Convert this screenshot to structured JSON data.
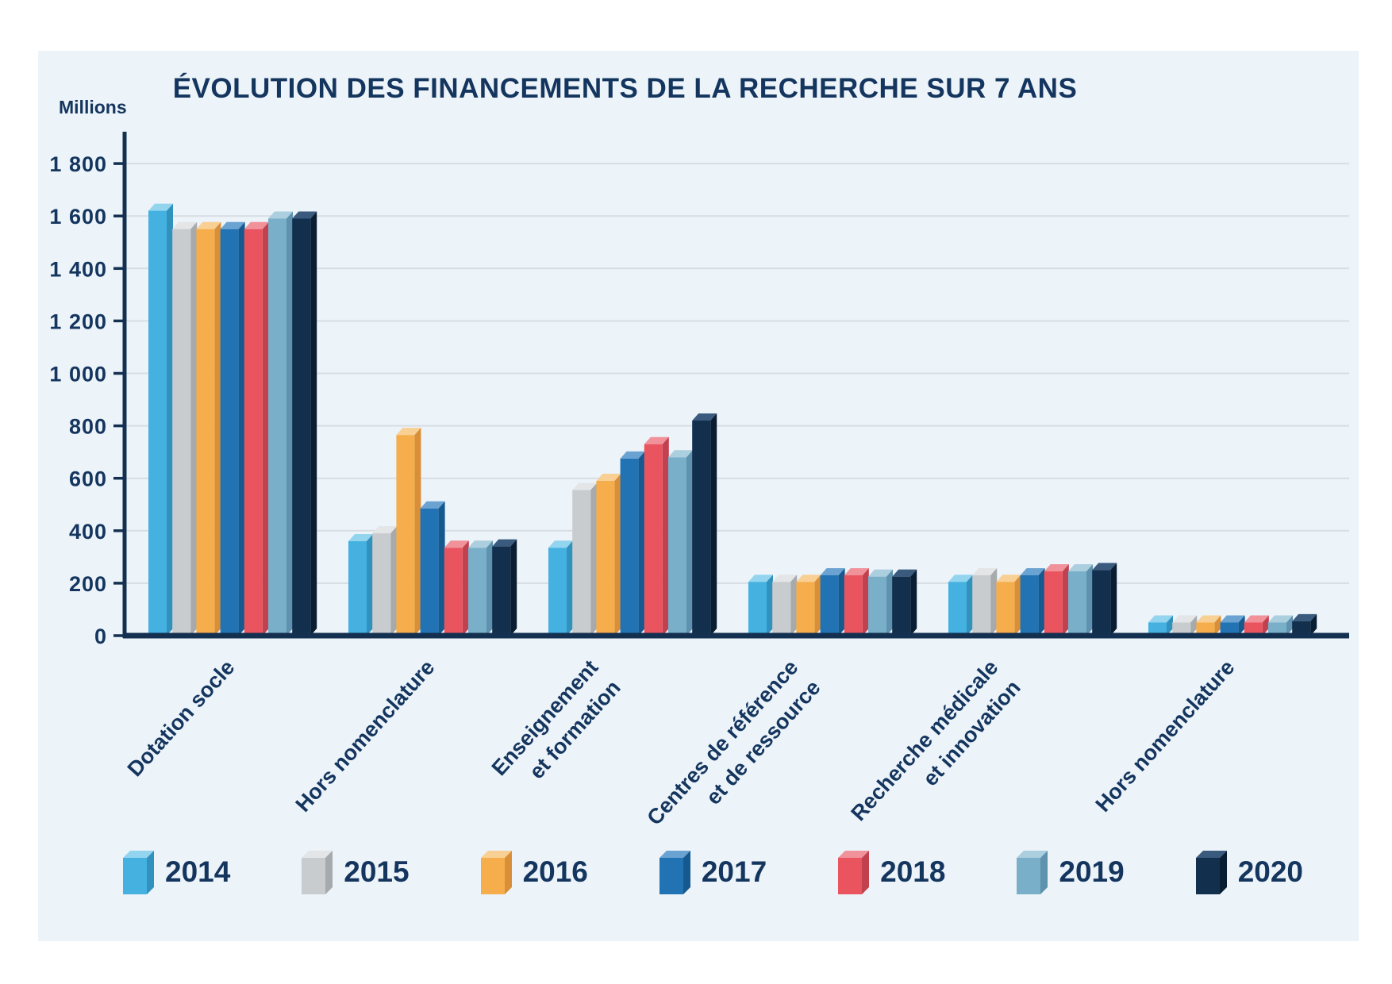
{
  "page": {
    "title": "ÉVOLUTION DES FINANCEMENTS DE LA RECHERCHE SUR 7 ANS",
    "y_axis_unit": "Millions"
  },
  "chart_data": {
    "type": "bar",
    "style": "3d-grouped-columns",
    "title": "ÉVOLUTION DES FINANCEMENTS DE LA RECHERCHE SUR 7 ANS",
    "xlabel": "",
    "ylabel": "Millions",
    "ylim": [
      0,
      1800
    ],
    "ytick_step": 200,
    "ytick_values": [
      1800,
      1600,
      1400,
      1200,
      1000,
      800,
      600,
      400,
      200,
      0
    ],
    "ytick_labels": [
      "1 800",
      "1 600",
      "1 400",
      "1 200",
      "1 000",
      "800",
      "600",
      "400",
      "200",
      "0"
    ],
    "grid": true,
    "legend_position": "bottom",
    "categories": [
      [
        "Dotation socle"
      ],
      [
        "Hors nomenclature"
      ],
      [
        "Enseignement",
        "et formation"
      ],
      [
        "Centres de référence",
        "et de ressource"
      ],
      [
        "Recherche médicale",
        "et innovation"
      ],
      [
        "Hors nomenclature"
      ]
    ],
    "series": [
      {
        "name": "2014",
        "color": "#44b1e1",
        "top_color": "#93d5ef",
        "side_color": "#3092bd",
        "values": [
          1620,
          360,
          335,
          205,
          205,
          50
        ]
      },
      {
        "name": "2015",
        "color": "#c9cccf",
        "top_color": "#e3e5e7",
        "side_color": "#a7aaad",
        "values": [
          1550,
          390,
          555,
          205,
          230,
          50
        ]
      },
      {
        "name": "2016",
        "color": "#f6ae4c",
        "top_color": "#f9d093",
        "side_color": "#d98f38",
        "values": [
          1550,
          765,
          590,
          205,
          205,
          50
        ]
      },
      {
        "name": "2017",
        "color": "#2273b4",
        "top_color": "#6aa3d2",
        "side_color": "#16598f",
        "values": [
          1550,
          485,
          675,
          230,
          230,
          50
        ]
      },
      {
        "name": "2018",
        "color": "#e9545f",
        "top_color": "#f1929a",
        "side_color": "#c2414f",
        "values": [
          1550,
          335,
          730,
          230,
          245,
          50
        ]
      },
      {
        "name": "2019",
        "color": "#7aafc9",
        "top_color": "#accfdf",
        "side_color": "#5e92ae",
        "values": [
          1590,
          335,
          680,
          225,
          245,
          50
        ]
      },
      {
        "name": "2020",
        "color": "#132f4e",
        "top_color": "#3a5b7e",
        "side_color": "#091d33",
        "values": [
          1590,
          340,
          820,
          225,
          250,
          55
        ]
      }
    ],
    "colors": {
      "background_panel": "#ecf3f9",
      "text": "#14355e",
      "axis": "#143050",
      "gridline": "#d8dde3"
    }
  }
}
